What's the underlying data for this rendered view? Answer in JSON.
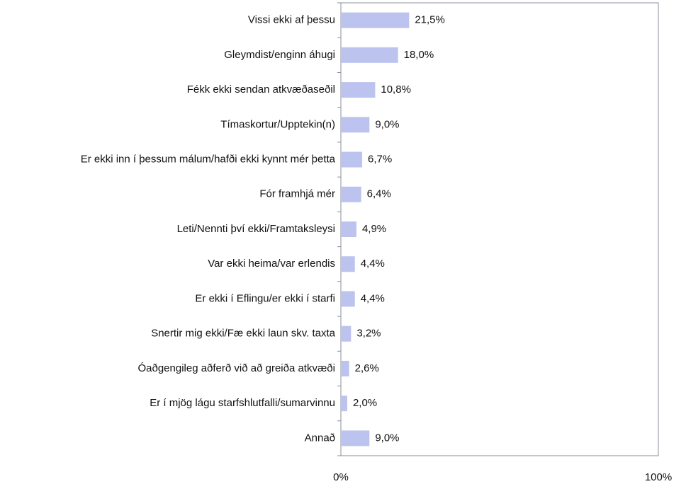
{
  "chart_data": {
    "type": "bar",
    "orientation": "horizontal",
    "categories": [
      "Vissi ekki af þessu",
      "Gleymdist/enginn áhugi",
      "Fékk ekki sendan atkvæðaseðil",
      "Tímaskortur/Upptekin(n)",
      "Er ekki inn í þessum málum/hafði ekki kynnt mér þetta",
      "Fór framhjá mér",
      "Leti/Nennti því ekki/Framtaksleysi",
      "Var ekki heima/var erlendis",
      "Er ekki í Eflingu/er ekki í starfi",
      "Snertir mig ekki/Fæ ekki laun skv. taxta",
      "Óaðgengileg aðferð við að greiða atkvæði",
      "Er í mjög lágu starfshlutfalli/sumarvinnu",
      "Annað"
    ],
    "values": [
      21.5,
      18.0,
      10.8,
      9.0,
      6.7,
      6.4,
      4.9,
      4.4,
      4.4,
      3.2,
      2.6,
      2.0,
      9.0
    ],
    "value_labels": [
      "21,5%",
      "18,0%",
      "10,8%",
      "9,0%",
      "6,7%",
      "6,4%",
      "4,9%",
      "4,4%",
      "4,4%",
      "3,2%",
      "2,6%",
      "2,0%",
      "9,0%"
    ],
    "color": "#bcc3ee",
    "xlim": [
      0,
      100
    ],
    "xticks": [
      {
        "value": 0,
        "label": "0%"
      },
      {
        "value": 100,
        "label": "100%"
      }
    ],
    "grid": false
  }
}
